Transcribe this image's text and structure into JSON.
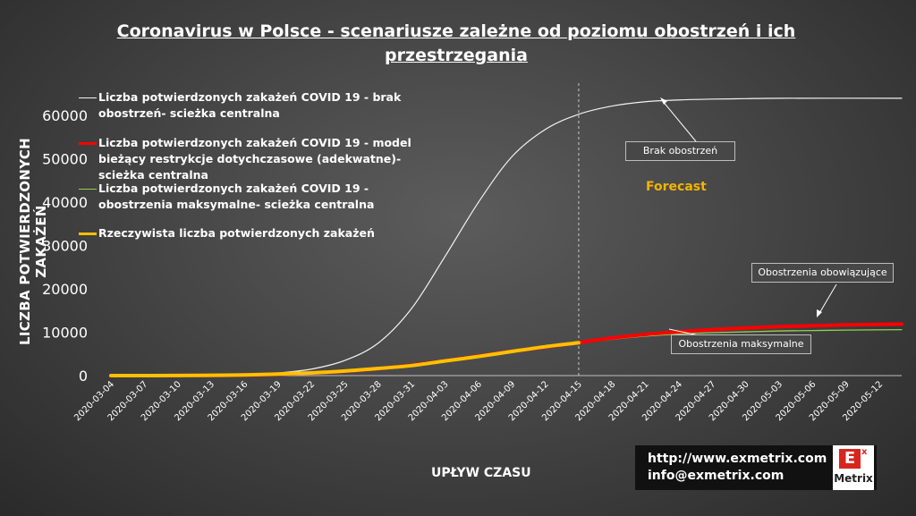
{
  "title_line1": "Coronavirus  w Polsce  - scenariusze  zależne  od poziomu obostrzeń  i ich",
  "title_line2": "przestrzegania",
  "forecast_label": "Forecast",
  "callouts": {
    "brak": "Brak obostrzeń",
    "obowiazujace": "Obostrzenia obowiązujące",
    "maksymalne": "Obostrzenia maksymalne"
  },
  "contact": {
    "url": "http://www.exmetrix.com",
    "email": "info@exmetrix.com"
  },
  "logo": {
    "letter": "E",
    "superscript": "x",
    "name": "Metrix"
  },
  "colors": {
    "brak": "#f2f2f2",
    "biezacy": "#ff0000",
    "maks": "#92d050",
    "rzecz": "#ffc000",
    "forecast": "#f3b400",
    "accent": "#d7261e"
  },
  "chart_data": {
    "type": "line",
    "xlabel": "UPŁYW CZASU",
    "ylabel": "LICZBA POTWIERDZONYCH ZAKAŻEŃ",
    "ylim": [
      0,
      65000
    ],
    "yticks": [
      0,
      10000,
      20000,
      30000,
      40000,
      50000,
      60000
    ],
    "x_ticks": [
      "2020-03-04",
      "2020-03-07",
      "2020-03-10",
      "2020-03-13",
      "2020-03-16",
      "2020-03-19",
      "2020-03-22",
      "2020-03-25",
      "2020-03-28",
      "2020-03-31",
      "2020-04-03",
      "2020-04-06",
      "2020-04-09",
      "2020-04-12",
      "2020-04-15",
      "2020-04-18",
      "2020-04-21",
      "2020-04-24",
      "2020-04-27",
      "2020-04-30",
      "2020-05-03",
      "2020-05-06",
      "2020-05-09",
      "2020-05-12"
    ],
    "x_start": "2020-03-04",
    "x_end": "2020-05-14",
    "forecast_start": "2020-04-15",
    "grid": false,
    "legend_position": "top-left",
    "series": [
      {
        "name": "Liczba potwierdzonych zakażeń COVID 19  - brak obostrzeń- scieżka centralna",
        "color": "#f2f2f2",
        "width": 1.2,
        "points": [
          [
            "2020-03-04",
            0
          ],
          [
            "2020-03-10",
            30
          ],
          [
            "2020-03-16",
            150
          ],
          [
            "2020-03-19",
            600
          ],
          [
            "2020-03-22",
            1500
          ],
          [
            "2020-03-25",
            3500
          ],
          [
            "2020-03-28",
            7500
          ],
          [
            "2020-03-31",
            15500
          ],
          [
            "2020-04-03",
            27500
          ],
          [
            "2020-04-06",
            40000
          ],
          [
            "2020-04-09",
            50500
          ],
          [
            "2020-04-12",
            56800
          ],
          [
            "2020-04-15",
            60300
          ],
          [
            "2020-04-18",
            62200
          ],
          [
            "2020-04-21",
            63200
          ],
          [
            "2020-04-24",
            63600
          ],
          [
            "2020-04-27",
            63800
          ],
          [
            "2020-04-30",
            63900
          ],
          [
            "2020-05-03",
            64000
          ],
          [
            "2020-05-14",
            64000
          ]
        ]
      },
      {
        "name": "Liczba potwierdzonych zakażeń COVID 19  - model bieżący restrykcje dotychczasowe (adekwatne)- scieżka centralna",
        "color": "#ff0000",
        "width": 4,
        "points": [
          [
            "2020-03-04",
            0
          ],
          [
            "2020-03-10",
            15
          ],
          [
            "2020-03-16",
            120
          ],
          [
            "2020-03-19",
            300
          ],
          [
            "2020-03-22",
            600
          ],
          [
            "2020-03-25",
            1000
          ],
          [
            "2020-03-28",
            1600
          ],
          [
            "2020-03-31",
            2400
          ],
          [
            "2020-04-03",
            3400
          ],
          [
            "2020-04-06",
            4500
          ],
          [
            "2020-04-09",
            5600
          ],
          [
            "2020-04-12",
            6600
          ],
          [
            "2020-04-15",
            7600
          ],
          [
            "2020-04-18",
            8700
          ],
          [
            "2020-04-21",
            9500
          ],
          [
            "2020-04-24",
            10100
          ],
          [
            "2020-04-27",
            10600
          ],
          [
            "2020-04-30",
            11000
          ],
          [
            "2020-05-03",
            11300
          ],
          [
            "2020-05-06",
            11500
          ],
          [
            "2020-05-09",
            11700
          ],
          [
            "2020-05-14",
            11900
          ]
        ]
      },
      {
        "name": "Liczba potwierdzonych zakażeń COVID 19  - obostrzenia maksymalne- scieżka centralna",
        "color": "#92d050",
        "width": 1.3,
        "points": [
          [
            "2020-03-04",
            0
          ],
          [
            "2020-03-10",
            15
          ],
          [
            "2020-03-16",
            120
          ],
          [
            "2020-03-19",
            300
          ],
          [
            "2020-03-22",
            600
          ],
          [
            "2020-03-25",
            1000
          ],
          [
            "2020-03-28",
            1600
          ],
          [
            "2020-03-31",
            2400
          ],
          [
            "2020-04-03",
            3400
          ],
          [
            "2020-04-06",
            4500
          ],
          [
            "2020-04-09",
            5600
          ],
          [
            "2020-04-12",
            6600
          ],
          [
            "2020-04-15",
            7500
          ],
          [
            "2020-04-18",
            8400
          ],
          [
            "2020-04-21",
            9100
          ],
          [
            "2020-04-24",
            9600
          ],
          [
            "2020-04-27",
            9900
          ],
          [
            "2020-04-30",
            10100
          ],
          [
            "2020-05-03",
            10300
          ],
          [
            "2020-05-06",
            10400
          ],
          [
            "2020-05-09",
            10500
          ],
          [
            "2020-05-14",
            10600
          ]
        ]
      },
      {
        "name": "Rzeczywista liczba potwierdzonych zakażeń",
        "color": "#ffc000",
        "width": 4,
        "points": [
          [
            "2020-03-04",
            0
          ],
          [
            "2020-03-10",
            20
          ],
          [
            "2020-03-16",
            150
          ],
          [
            "2020-03-19",
            350
          ],
          [
            "2020-03-22",
            630
          ],
          [
            "2020-03-25",
            1050
          ],
          [
            "2020-03-28",
            1640
          ],
          [
            "2020-03-31",
            2310
          ],
          [
            "2020-04-03",
            3380
          ],
          [
            "2020-04-06",
            4410
          ],
          [
            "2020-04-09",
            5570
          ],
          [
            "2020-04-12",
            6670
          ],
          [
            "2020-04-15",
            7580
          ]
        ]
      }
    ]
  }
}
